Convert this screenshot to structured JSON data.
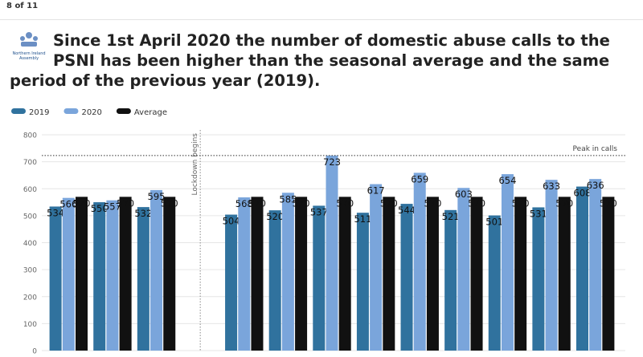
{
  "page": {
    "counter": "8 of 11",
    "logo_text": "Northern Ireland Assembly"
  },
  "chart_data": {
    "type": "bar",
    "title": "Since 1st April 2020 the number of domestic abuse calls to the PSNI has been higher than the seasonal average and the same period of the previous year (2019).",
    "categories": [
      null,
      null,
      null,
      null,
      null,
      null,
      null,
      null,
      null,
      null,
      null,
      null,
      null
    ],
    "series": [
      {
        "name": "2019",
        "color": "#30729e",
        "values": [
          534,
          550,
          532,
          null,
          504,
          520,
          537,
          511,
          544,
          521,
          501,
          531,
          608
        ]
      },
      {
        "name": "2020",
        "color": "#7aa5db",
        "values": [
          566,
          557,
          595,
          null,
          568,
          585,
          723,
          617,
          659,
          603,
          654,
          633,
          636
        ]
      },
      {
        "name": "Average",
        "color": "#111111",
        "values": [
          570,
          570,
          570,
          null,
          570,
          570,
          570,
          570,
          570,
          570,
          570,
          570,
          570
        ]
      }
    ],
    "ylim": [
      0,
      800
    ],
    "yticks": [
      0,
      100,
      200,
      300,
      400,
      500,
      600,
      700,
      800
    ],
    "grid": true,
    "legend": "top-left",
    "annotations": [
      {
        "text": "Lockdown begins"
      },
      {
        "text": "Peak in calls",
        "value": 723
      }
    ]
  }
}
